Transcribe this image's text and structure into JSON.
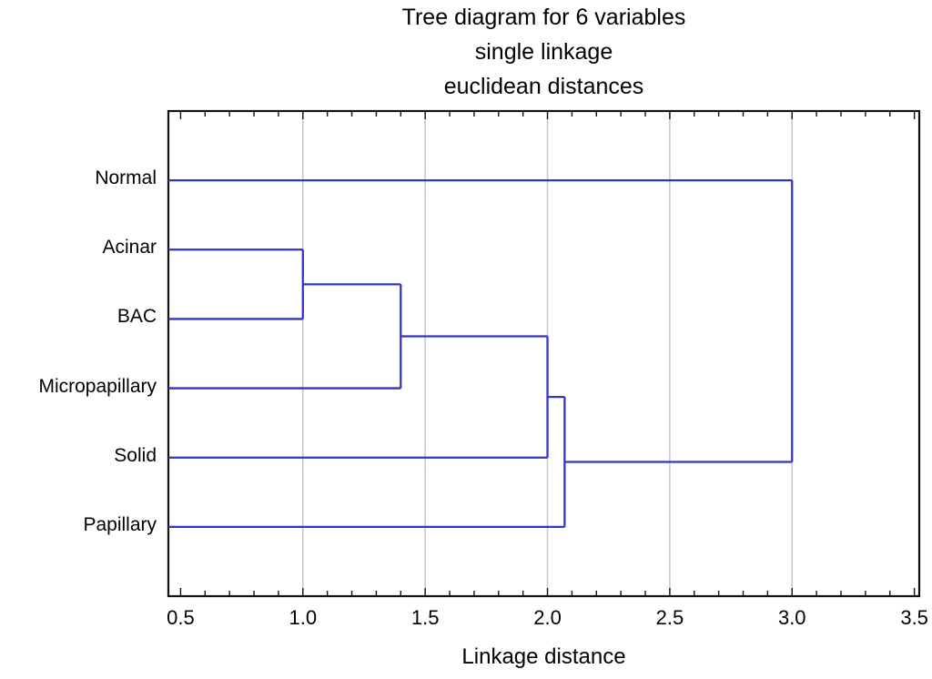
{
  "title": {
    "line1": "Tree diagram for 6 variables",
    "line2": "single linkage",
    "line3": "euclidean distances"
  },
  "chart_data": {
    "type": "dendrogram",
    "orientation": "horizontal",
    "title": "Tree diagram for 6 variables",
    "subtitle1": "single linkage",
    "subtitle2": "euclidean distances",
    "xlabel": "Linkage distance",
    "leaves": [
      "Normal",
      "Acinar",
      "BAC",
      "Micropapillary",
      "Solid",
      "Papillary"
    ],
    "merges": [
      {
        "id": "m1",
        "children": [
          "Acinar",
          "BAC"
        ],
        "distance": 1.0
      },
      {
        "id": "m2",
        "children": [
          "m1",
          "Micropapillary"
        ],
        "distance": 1.4
      },
      {
        "id": "m3",
        "children": [
          "m2",
          "Solid"
        ],
        "distance": 2.0
      },
      {
        "id": "m4",
        "children": [
          "m3",
          "Papillary"
        ],
        "distance": 2.07
      },
      {
        "id": "m5",
        "children": [
          "m4",
          "Normal"
        ],
        "distance": 3.0
      }
    ],
    "xlim": [
      0.45,
      3.52
    ],
    "xticks": [
      "0.5",
      "1.0",
      "1.5",
      "2.0",
      "2.5",
      "3.0",
      "3.5"
    ],
    "gridlines": [
      1.0,
      1.5,
      2.0,
      2.5,
      3.0
    ],
    "minor_tick_step": 0.1,
    "line_color": "#3434c0",
    "grid_color": "#c9c9c9",
    "axis_color": "#111111",
    "background_color": "#ffffff"
  }
}
